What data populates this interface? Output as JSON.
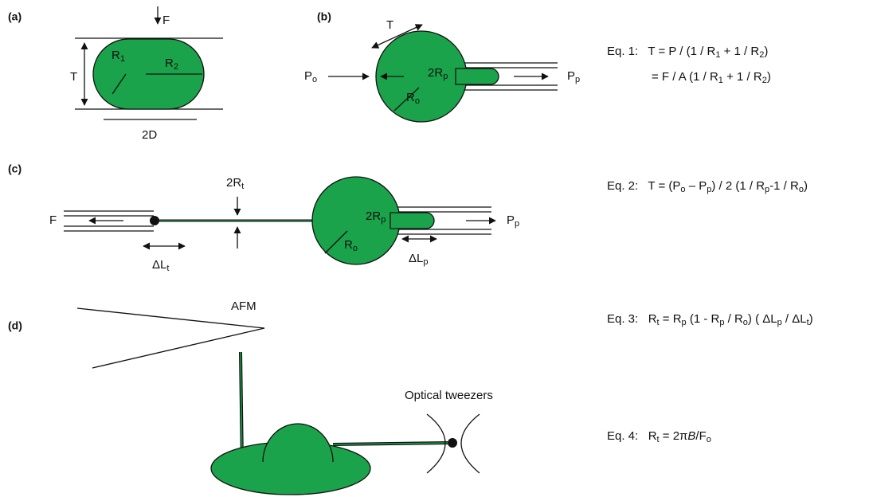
{
  "panels": {
    "a": {
      "label": "(a)",
      "F": "F",
      "R1": [
        "R",
        {
          "sub": "1"
        }
      ],
      "R2": [
        "R",
        {
          "sub": "2"
        }
      ],
      "T": "T",
      "D": "2D"
    },
    "b": {
      "label": "(b)",
      "T": "T",
      "Po": [
        "P",
        {
          "sub": "o"
        }
      ],
      "Rp": [
        "2R",
        {
          "sub": "p"
        }
      ],
      "Ro": [
        "R",
        {
          "sub": "o"
        }
      ],
      "Pp": [
        "P",
        {
          "sub": "p"
        }
      ]
    },
    "c": {
      "label": "(c)",
      "F": "F",
      "Rt": [
        "2R",
        {
          "sub": "t"
        }
      ],
      "Rp": [
        "2R",
        {
          "sub": "p"
        }
      ],
      "Ro": [
        "R",
        {
          "sub": "o"
        }
      ],
      "Pp": [
        "P",
        {
          "sub": "p"
        }
      ],
      "Lt": [
        "ΔL",
        {
          "sub": "t"
        }
      ],
      "Lp": [
        "ΔL",
        {
          "sub": "p"
        }
      ]
    },
    "d": {
      "label": "(d)",
      "afm": "AFM",
      "tweezers": "Optical tweezers"
    }
  },
  "equations": [
    [
      "Eq. 1:   T = P / (1 / R",
      {
        "sub": "1"
      },
      " + 1 / R",
      {
        "sub": "2"
      },
      ")"
    ],
    [
      "= F / A (1 / R",
      {
        "sub": "1"
      },
      " + 1 / R",
      {
        "sub": "2"
      },
      ")"
    ],
    [
      "Eq. 2:   T = (P",
      {
        "sub": "o"
      },
      " – P",
      {
        "sub": "p"
      },
      ") / 2 (1 / R",
      {
        "sub": "p"
      },
      "-1 / R",
      {
        "sub": "o"
      },
      ")"
    ],
    [
      "Eq. 3:   R",
      {
        "sub": "t"
      },
      " = R",
      {
        "sub": "p"
      },
      " (1 - R",
      {
        "sub": "p"
      },
      " / R",
      {
        "sub": "o"
      },
      ") ( ΔL",
      {
        "sub": "p"
      },
      " / ΔL",
      {
        "sub": "t"
      },
      ")"
    ],
    [
      "Eq. 4:   R",
      {
        "sub": "t"
      },
      " = 2π",
      {
        "italic": "B"
      },
      "/F",
      {
        "sub": "o"
      }
    ]
  ]
}
